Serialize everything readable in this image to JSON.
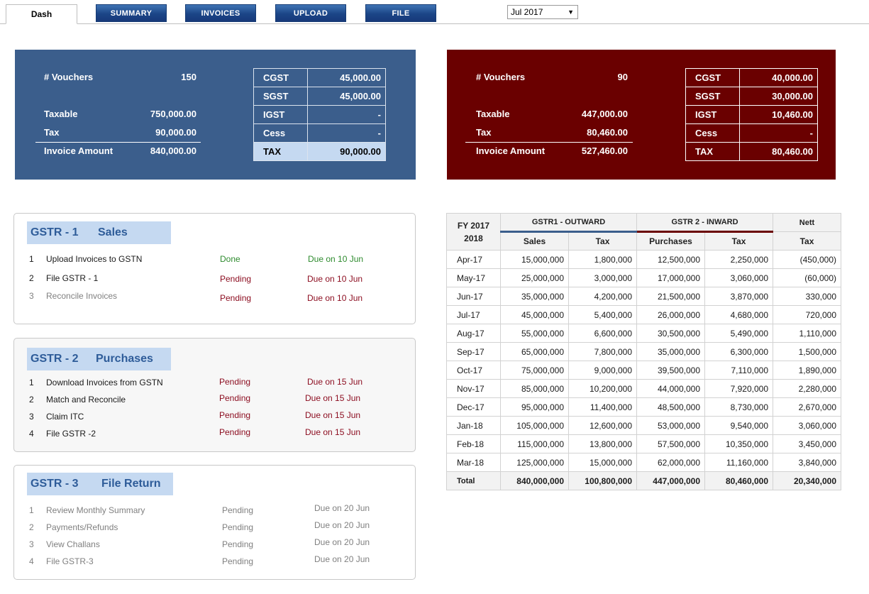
{
  "nav": {
    "dash_tab": "Dash",
    "buttons": [
      "SUMMARY",
      "INVOICES",
      "UPLOAD",
      "FILE"
    ],
    "month": "Jul 2017"
  },
  "sales_panel": {
    "vouchers_label": "# Vouchers",
    "vouchers_value": "150",
    "taxable_label": "Taxable",
    "taxable_value": "750,000.00",
    "tax_label": "Tax",
    "tax_value": "90,000.00",
    "invoice_label": "Invoice Amount",
    "invoice_value": "840,000.00",
    "taxes": [
      {
        "label": "CGST",
        "value": "45,000.00"
      },
      {
        "label": "SGST",
        "value": "45,000.00"
      },
      {
        "label": "IGST",
        "value": "-"
      },
      {
        "label": "Cess",
        "value": "-"
      },
      {
        "label": "TAX",
        "value": "90,000.00"
      }
    ],
    "color": "#3b5e8c"
  },
  "purchase_panel": {
    "vouchers_label": "# Vouchers",
    "vouchers_value": "90",
    "taxable_label": "Taxable",
    "taxable_value": "447,000.00",
    "tax_label": "Tax",
    "tax_value": "80,460.00",
    "invoice_label": "Invoice Amount",
    "invoice_value": "527,460.00",
    "taxes": [
      {
        "label": "CGST",
        "value": "40,000.00"
      },
      {
        "label": "SGST",
        "value": "30,000.00"
      },
      {
        "label": "IGST",
        "value": "10,460.00"
      },
      {
        "label": "Cess",
        "value": "-"
      },
      {
        "label": "TAX",
        "value": "80,460.00"
      }
    ],
    "color": "#6a0000"
  },
  "gstr1": {
    "code": "GSTR - 1",
    "name": "Sales",
    "tasks": [
      {
        "num": "1",
        "label": "Upload Invoices to GSTN",
        "status": "Done",
        "due": "Due on 10 Jun"
      },
      {
        "num": "2",
        "label": "File GSTR - 1",
        "status": "Pending",
        "due": "Due on 10 Jun"
      },
      {
        "num": "3",
        "label": "Reconcile Invoices",
        "status": "Pending",
        "due": "Due on 10 Jun"
      }
    ]
  },
  "gstr2": {
    "code": "GSTR - 2",
    "name": "Purchases",
    "tasks": [
      {
        "num": "1",
        "label": "Download Invoices from GSTN",
        "status": "Pending",
        "due": "Due on 15 Jun"
      },
      {
        "num": "2",
        "label": "Match and Reconcile",
        "status": "Pending",
        "due": "Due on 15 Jun"
      },
      {
        "num": "3",
        "label": "Claim ITC",
        "status": "Pending",
        "due": "Due on 15 Jun"
      },
      {
        "num": "4",
        "label": "File GSTR -2",
        "status": "Pending",
        "due": "Due on 15 Jun"
      }
    ]
  },
  "gstr3": {
    "code": "GSTR - 3",
    "name": "File Return",
    "tasks": [
      {
        "num": "1",
        "label": "Review Monthly Summary",
        "status": "Pending",
        "due": "Due on 20 Jun"
      },
      {
        "num": "2",
        "label": "Payments/Refunds",
        "status": "Pending",
        "due": "Due on 20 Jun"
      },
      {
        "num": "3",
        "label": "View Challans",
        "status": "Pending",
        "due": "Due on 20 Jun"
      },
      {
        "num": "4",
        "label": "File GSTR-3",
        "status": "Pending",
        "due": "Due on 20 Jun"
      }
    ]
  },
  "table": {
    "fy_line1": "FY 2017",
    "fy_line2": "2018",
    "group_outward": "GSTR1 - OUTWARD",
    "group_inward": "GSTR 2 - INWARD",
    "group_nett": "Nett",
    "columns": [
      "Sales",
      "Tax",
      "Purchases",
      "Tax",
      "Tax"
    ],
    "rows": [
      [
        "Apr-17",
        "15,000,000",
        "1,800,000",
        "12,500,000",
        "2,250,000",
        "(450,000)"
      ],
      [
        "May-17",
        "25,000,000",
        "3,000,000",
        "17,000,000",
        "3,060,000",
        "(60,000)"
      ],
      [
        "Jun-17",
        "35,000,000",
        "4,200,000",
        "21,500,000",
        "3,870,000",
        "330,000"
      ],
      [
        "Jul-17",
        "45,000,000",
        "5,400,000",
        "26,000,000",
        "4,680,000",
        "720,000"
      ],
      [
        "Aug-17",
        "55,000,000",
        "6,600,000",
        "30,500,000",
        "5,490,000",
        "1,110,000"
      ],
      [
        "Sep-17",
        "65,000,000",
        "7,800,000",
        "35,000,000",
        "6,300,000",
        "1,500,000"
      ],
      [
        "Oct-17",
        "75,000,000",
        "9,000,000",
        "39,500,000",
        "7,110,000",
        "1,890,000"
      ],
      [
        "Nov-17",
        "85,000,000",
        "10,200,000",
        "44,000,000",
        "7,920,000",
        "2,280,000"
      ],
      [
        "Dec-17",
        "95,000,000",
        "11,400,000",
        "48,500,000",
        "8,730,000",
        "2,670,000"
      ],
      [
        "Jan-18",
        "105,000,000",
        "12,600,000",
        "53,000,000",
        "9,540,000",
        "3,060,000"
      ],
      [
        "Feb-18",
        "115,000,000",
        "13,800,000",
        "57,500,000",
        "10,350,000",
        "3,450,000"
      ],
      [
        "Mar-18",
        "125,000,000",
        "15,000,000",
        "62,000,000",
        "11,160,000",
        "3,840,000"
      ]
    ],
    "total": [
      "Total",
      "840,000,000",
      "100,800,000",
      "447,000,000",
      "80,460,000",
      "20,340,000"
    ]
  }
}
